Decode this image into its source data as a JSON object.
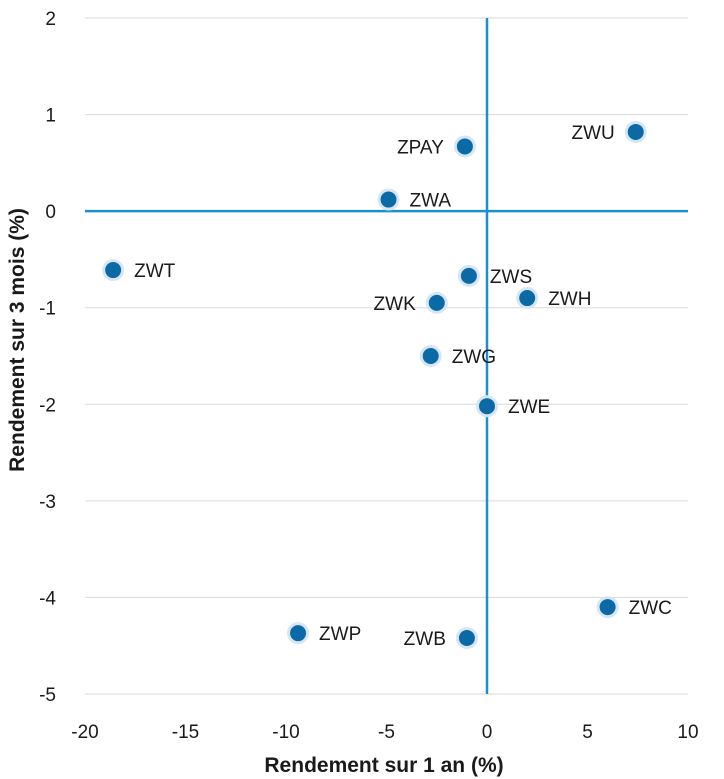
{
  "chart_data": {
    "type": "scatter",
    "xlabel": "Rendement sur 1 an (%)",
    "ylabel": "Rendement sur 3 mois (%)",
    "xlim": [
      -20,
      10
    ],
    "ylim": [
      -5,
      2
    ],
    "xticks": [
      -20,
      -15,
      -10,
      -5,
      0,
      5,
      10
    ],
    "yticks": [
      -5,
      -4,
      -3,
      -2,
      -1,
      0,
      1,
      2
    ],
    "grid": "horizontal",
    "colors": {
      "point": "#0b6aa6",
      "halo": "#d6e6f2",
      "axis_line": "#1a8fd1",
      "grid": "#d9d9d9"
    },
    "points": [
      {
        "label": "ZWU",
        "x": 7.4,
        "y": 0.82,
        "label_side": "left"
      },
      {
        "label": "ZPAY",
        "x": -1.1,
        "y": 0.67,
        "label_side": "left"
      },
      {
        "label": "ZWA",
        "x": -4.9,
        "y": 0.12,
        "label_side": "right"
      },
      {
        "label": "ZWT",
        "x": -18.6,
        "y": -0.61,
        "label_side": "right"
      },
      {
        "label": "ZWS",
        "x": -0.9,
        "y": -0.67,
        "label_side": "right"
      },
      {
        "label": "ZWH",
        "x": 2.0,
        "y": -0.9,
        "label_side": "right"
      },
      {
        "label": "ZWK",
        "x": -2.5,
        "y": -0.95,
        "label_side": "left"
      },
      {
        "label": "ZWG",
        "x": -2.8,
        "y": -1.5,
        "label_side": "right"
      },
      {
        "label": "ZWE",
        "x": 0.0,
        "y": -2.02,
        "label_side": "right"
      },
      {
        "label": "ZWC",
        "x": 6.0,
        "y": -4.1,
        "label_side": "right"
      },
      {
        "label": "ZWP",
        "x": -9.4,
        "y": -4.37,
        "label_side": "right"
      },
      {
        "label": "ZWB",
        "x": -1.0,
        "y": -4.42,
        "label_side": "left"
      }
    ]
  }
}
